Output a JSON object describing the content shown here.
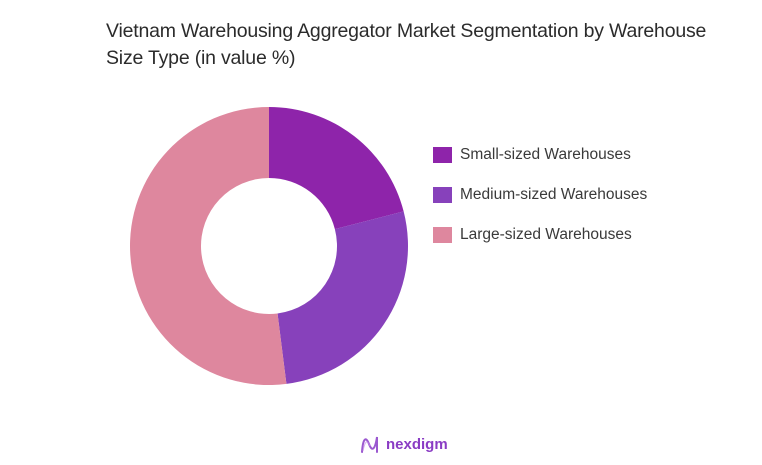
{
  "title": "Vietnam Warehousing Aggregator Market Segmentation by Warehouse Size Type (in value %)",
  "brand": {
    "name": "nexdigm",
    "icon": "nexdigm-logo-icon",
    "color": "#8a3cc4"
  },
  "legend": {
    "items": [
      {
        "label": "Small-sized Warehouses",
        "color": "#8e24aa"
      },
      {
        "label": "Medium-sized Warehouses",
        "color": "#8741bb"
      },
      {
        "label": "Large-sized Warehouses",
        "color": "#de879e"
      }
    ]
  },
  "chart_data": {
    "type": "pie",
    "subtype": "donut",
    "title": "Vietnam Warehousing Aggregator Market Segmentation by Warehouse Size Type (in value %)",
    "categories": [
      "Small-sized Warehouses",
      "Medium-sized Warehouses",
      "Large-sized Warehouses"
    ],
    "values": [
      21,
      27,
      52
    ],
    "colors": [
      "#8e24aa",
      "#8741bb",
      "#de879e"
    ],
    "unit": "%",
    "legend_position": "right",
    "start_angle": "top, clockwise"
  }
}
